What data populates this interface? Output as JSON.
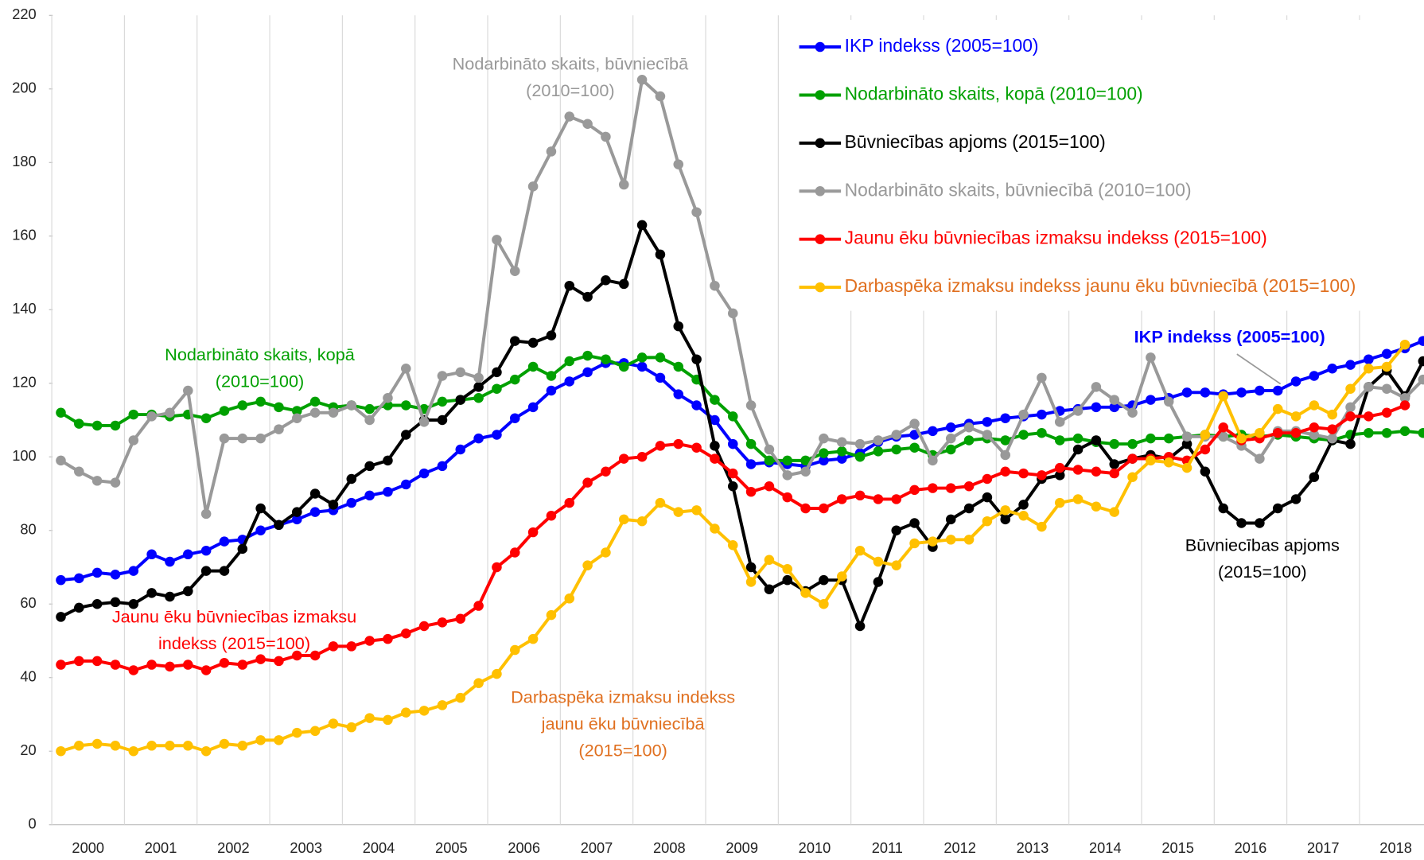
{
  "chart_data": {
    "type": "line",
    "categories": [
      "2000",
      null,
      null,
      null,
      "2001",
      null,
      null,
      null,
      "2002",
      null,
      null,
      null,
      "2003",
      null,
      null,
      null,
      "2004",
      null,
      null,
      null,
      "2005",
      null,
      null,
      null,
      "2006",
      null,
      null,
      null,
      "2007",
      null,
      null,
      null,
      "2008",
      null,
      null,
      null,
      "2009",
      null,
      null,
      null,
      "2010",
      null,
      null,
      null,
      "2011",
      null,
      null,
      null,
      "2012",
      null,
      null,
      null,
      "2013",
      null,
      null,
      null,
      "2014",
      null,
      null,
      null,
      "2015",
      null,
      null,
      null,
      "2016",
      null,
      null,
      null,
      "2017",
      null,
      null,
      null,
      "2018",
      null,
      null,
      null
    ],
    "ylim": [
      0,
      220
    ],
    "yticks": [
      0,
      20,
      40,
      60,
      80,
      100,
      120,
      140,
      160,
      180,
      200,
      220
    ],
    "grid": "vertical",
    "legend": "top-right",
    "series": [
      {
        "name": "IKP indekss (2005=100)",
        "color": "#0000ff",
        "label_color": "#0000ff",
        "values": [
          66.5,
          67,
          68.5,
          68,
          69,
          73.5,
          71.5,
          73.5,
          74.5,
          77,
          77.5,
          80,
          81.5,
          83,
          85,
          85.5,
          87.5,
          89.5,
          90.5,
          92.5,
          95.5,
          97.5,
          102,
          105,
          106,
          110.5,
          113.5,
          118,
          120.5,
          123,
          125.5,
          125.5,
          124.5,
          121.5,
          117,
          114,
          110,
          103.5,
          98,
          98.5,
          98,
          97.5,
          99,
          99.5,
          101,
          104,
          105.5,
          106,
          107,
          108,
          109,
          109.5,
          110.5,
          111,
          111.5,
          112.5,
          113,
          113.5,
          113.5,
          114,
          115.5,
          116,
          117.5,
          117.5,
          117,
          117.5,
          118,
          118,
          120.5,
          122,
          124,
          125,
          126.5,
          128,
          129.5,
          131.5
        ]
      },
      {
        "name": "Nodarbināto skaits, kopā (2010=100)",
        "color": "#00a000",
        "label_color": "#00a000",
        "values": [
          112,
          109,
          108.5,
          108.5,
          111.5,
          111.5,
          111,
          111.5,
          110.5,
          112.5,
          114,
          115,
          113.5,
          112.5,
          115,
          113.5,
          114,
          113,
          114,
          114,
          113,
          115,
          115.5,
          116,
          118.5,
          121,
          124.5,
          122,
          126,
          127.5,
          126.5,
          124.5,
          127,
          127,
          124.5,
          121,
          115.5,
          111,
          103.5,
          99,
          99,
          99,
          101,
          101.5,
          100,
          101.5,
          102,
          102.5,
          100.5,
          102,
          104.5,
          105,
          104.5,
          106,
          106.5,
          104.5,
          105,
          104,
          103.5,
          103.5,
          105,
          105,
          105.5,
          106,
          105.5,
          106,
          105.5,
          106,
          105.5,
          105,
          104.5,
          106,
          106.5,
          106.5,
          107,
          106.5
        ]
      },
      {
        "name": "Būvniecības apjoms (2015=100)",
        "color": "#000000",
        "label_color": "#000000",
        "values": [
          56.5,
          59,
          60,
          60.5,
          60,
          63,
          62,
          63.5,
          69,
          69,
          75,
          86,
          81.5,
          85,
          90,
          87,
          94,
          97.5,
          99,
          106,
          110,
          110,
          115.5,
          119,
          123,
          131.5,
          131,
          133,
          146.5,
          143.5,
          148,
          147,
          163,
          155,
          135.5,
          126.5,
          103,
          92,
          70,
          64,
          66.5,
          63.5,
          66.5,
          66.5,
          54,
          66,
          80,
          82,
          75.5,
          83,
          86,
          89,
          83,
          87,
          94,
          95,
          102,
          104.5,
          98,
          99.5,
          100.5,
          99.5,
          103.5,
          96,
          86,
          82,
          82,
          86,
          88.5,
          94.5,
          104.5,
          103.5,
          119,
          123.5,
          116.5,
          126
        ]
      },
      {
        "name": "Nodarbināto skaits, būvniecībā (2010=100)",
        "color": "#999999",
        "label_color": "#999999",
        "values": [
          99,
          96,
          93.5,
          93,
          104.5,
          111,
          112,
          118,
          84.5,
          105,
          105,
          105,
          107.5,
          110.5,
          112,
          112,
          114,
          110,
          116,
          124,
          109.5,
          122,
          123,
          121.5,
          159,
          150.5,
          173.5,
          183,
          192.5,
          190.5,
          187,
          174,
          202.5,
          198,
          179.5,
          166.5,
          146.5,
          139,
          114,
          102,
          95,
          96,
          105,
          104,
          103.5,
          104.5,
          106,
          109,
          99,
          105,
          108,
          106,
          100.5,
          111.5,
          121.5,
          109.5,
          112.5,
          119,
          115.5,
          112,
          127,
          115,
          105.5,
          105.5,
          105.5,
          103,
          99.5,
          107,
          107,
          106,
          105,
          113.5,
          119,
          118.5,
          116,
          121
        ]
      },
      {
        "name": "Jaunu ēku būvniecības izmaksu indekss (2015=100)",
        "color": "#ff0000",
        "label_color": "#ff0000",
        "values": [
          43.5,
          44.5,
          44.5,
          43.5,
          42,
          43.5,
          43,
          43.5,
          42,
          44,
          43.5,
          45,
          44.5,
          46,
          46,
          48.5,
          48.5,
          50,
          50.5,
          52,
          54,
          55,
          56,
          59.5,
          70,
          74,
          79.5,
          84,
          87.5,
          93,
          96,
          99.5,
          100,
          103,
          103.5,
          102.5,
          99.5,
          95.5,
          90.5,
          92,
          89,
          86,
          86,
          88.5,
          89.5,
          88.5,
          88.5,
          91,
          91.5,
          91.5,
          92,
          94,
          96,
          95.5,
          95,
          97,
          96.5,
          96,
          95.5,
          99.5,
          99.5,
          100,
          99,
          102,
          108,
          104.5,
          105,
          106.5,
          106.5,
          108,
          107.5,
          111,
          111,
          112,
          114,
          null
        ]
      },
      {
        "name": "Darbaspēka izmaksu indekss jaunu ēku būvniecībā (2015=100)",
        "color": "#ffc000",
        "label_color": "#e07020",
        "values": [
          20,
          21.5,
          22,
          21.5,
          20,
          21.5,
          21.5,
          21.5,
          20,
          22,
          21.5,
          23,
          23,
          25,
          25.5,
          27.5,
          26.5,
          29,
          28.5,
          30.5,
          31,
          32.5,
          34.5,
          38.5,
          41,
          47.5,
          50.5,
          57,
          61.5,
          70.5,
          74,
          83,
          82.5,
          87.5,
          85,
          85.5,
          80.5,
          76,
          66,
          72,
          69.5,
          63,
          60,
          67.5,
          74.5,
          71.5,
          70.5,
          76.5,
          77,
          77.5,
          77.5,
          82.5,
          85.5,
          84,
          81,
          87.5,
          88.5,
          86.5,
          85,
          94.5,
          99,
          98.5,
          97,
          106,
          116.5,
          105,
          106.5,
          113,
          111,
          114,
          111.5,
          118.5,
          124,
          124.5,
          130.5,
          null
        ]
      }
    ],
    "annotations": [
      {
        "lines": [
          "Nodarbināto skaits, būvniecībā",
          "(2010=100)"
        ],
        "color": "#999999"
      },
      {
        "lines": [
          "Nodarbināto skaits, kopā",
          "(2010=100)"
        ],
        "color": "#00a000"
      },
      {
        "lines": [
          "Jaunu ēku būvniecības izmaksu",
          "indekss (2015=100)"
        ],
        "color": "#ff0000"
      },
      {
        "lines": [
          "Darbaspēka izmaksu indekss",
          "jaunu ēku būvniecībā",
          "(2015=100)"
        ],
        "color": "#e07020"
      },
      {
        "lines": [
          "Būvniecības apjoms",
          "(2015=100)"
        ],
        "color": "#000000"
      },
      {
        "lines": [
          "IKP indekss (2005=100)"
        ],
        "color": "#0000ff",
        "bold": true
      }
    ]
  }
}
